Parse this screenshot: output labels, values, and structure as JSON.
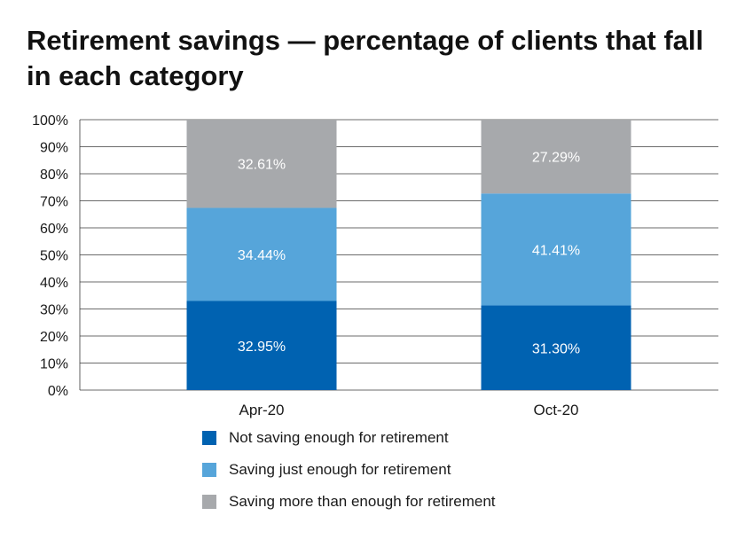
{
  "chart_data": {
    "type": "bar",
    "stacked": true,
    "title_lines": [
      "Retirement savings — percentage of clients that fall",
      "in each category"
    ],
    "categories": [
      "Apr-20",
      "Oct-20"
    ],
    "series": [
      {
        "name": "Not saving enough for retirement",
        "color": "#0062b1",
        "values": [
          32.95,
          31.3
        ],
        "labels": [
          "32.95%",
          "31.30%"
        ]
      },
      {
        "name": "Saving just enough for retirement",
        "color": "#56a5da",
        "values": [
          34.44,
          41.41
        ],
        "labels": [
          "34.44%",
          "41.41%"
        ]
      },
      {
        "name": "Saving more than enough for retirement",
        "color": "#a7a9ac",
        "values": [
          32.61,
          27.29
        ],
        "labels": [
          "32.61%",
          "27.29%"
        ]
      }
    ],
    "ylim": [
      0,
      100
    ],
    "yticks": [
      "0%",
      "10%",
      "20%",
      "30%",
      "40%",
      "50%",
      "60%",
      "70%",
      "80%",
      "90%",
      "100%"
    ],
    "grid": true,
    "legend_position": "bottom"
  }
}
